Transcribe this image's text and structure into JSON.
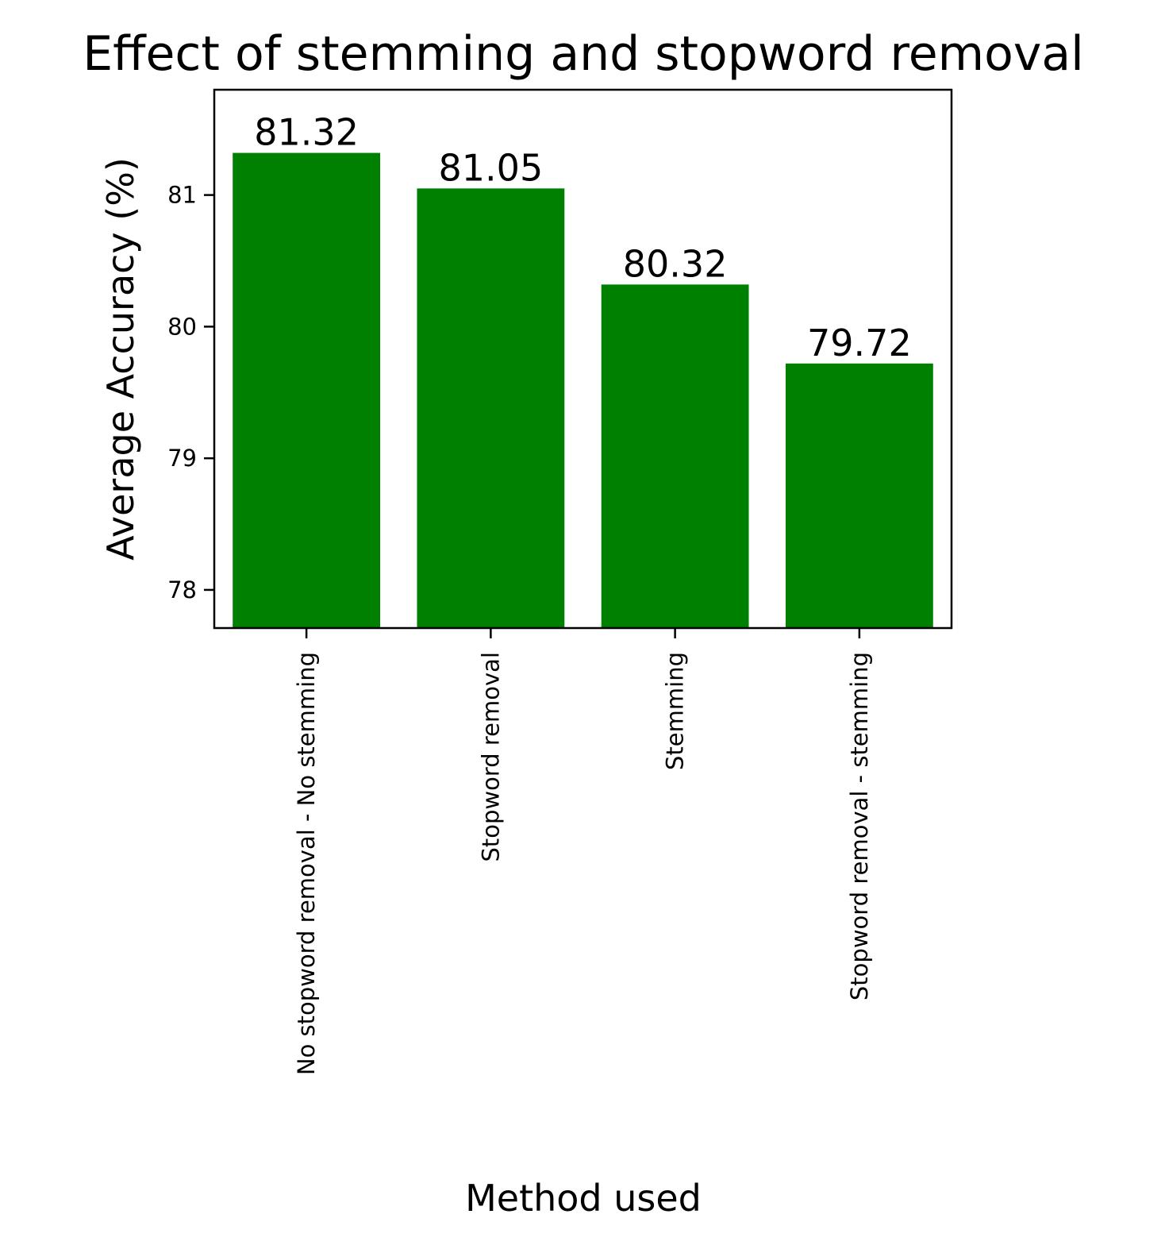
{
  "chart_data": {
    "type": "bar",
    "title": "Effect of stemming and stopword removal",
    "xlabel": "Method used",
    "ylabel": "Average Accuracy (%)",
    "categories": [
      "No stopword removal - No stemming",
      "Stopword removal",
      "Stemming",
      "Stopword removal - stemming"
    ],
    "values": [
      81.32,
      81.05,
      80.32,
      79.72
    ],
    "data_labels": [
      "81.32",
      "81.05",
      "80.32",
      "79.72"
    ],
    "yticks": [
      78,
      79,
      80,
      81
    ],
    "ytick_labels": [
      "78",
      "79",
      "80",
      "81"
    ],
    "ylim": [
      77.71,
      81.8
    ],
    "bar_color": "#008000",
    "grid": false,
    "legend": "none"
  }
}
